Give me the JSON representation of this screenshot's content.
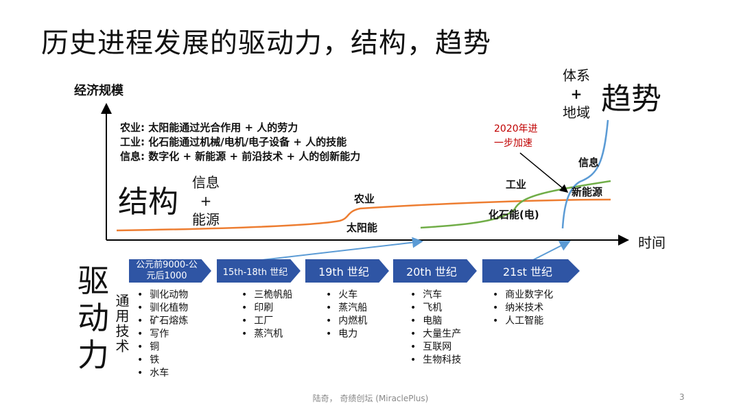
{
  "title": "历史进程发展的驱动力，结构，趋势",
  "axes": {
    "y_label": "经济规模",
    "x_label": "时间"
  },
  "descriptions": [
    "农业: 太阳能通过光合作用 + 人的劳力",
    "工业: 化石能通过机械/电机/电子设备 + 人的技能",
    "信息: 数字化 + 新能源 + 前沿技术 + 人的创新能力"
  ],
  "structure": {
    "label": "结构",
    "sub": [
      "信息",
      "+",
      "能源"
    ]
  },
  "trend": {
    "label": "趋势",
    "sub": [
      "体系",
      "+",
      "地域"
    ]
  },
  "curves": {
    "agriculture": "农业",
    "solar": "太阳能",
    "industry": "工业",
    "fossil": "化石能(电)",
    "info": "信息",
    "new_energy": "新能源",
    "annotation": [
      "2020年进",
      "一步加速"
    ]
  },
  "colors": {
    "agriculture": "#ed7d31",
    "industry": "#70ad47",
    "info": "#5b9bd5",
    "chevron": "#2f55a4",
    "annotation": "#c00000"
  },
  "drivers": {
    "label": "驱动力",
    "sub": "通用技术"
  },
  "eras": [
    {
      "label": "公元前9000-公元后1000",
      "items": [
        "驯化动物",
        "驯化植物",
        "矿石熔炼",
        "写作",
        "铜",
        "铁",
        "水车"
      ]
    },
    {
      "label": "15th-18th 世纪",
      "items": [
        "三桅帆船",
        "印刷",
        "工厂",
        "蒸汽机"
      ]
    },
    {
      "label": "19th 世纪",
      "items": [
        "火车",
        "蒸汽船",
        "内燃机",
        "电力"
      ]
    },
    {
      "label": "20th 世纪",
      "items": [
        "汽车",
        "飞机",
        "电脑",
        "大量生产",
        "互联网",
        "生物科技"
      ]
    },
    {
      "label": "21st 世纪",
      "items": [
        "商业数字化",
        "纳米技术",
        "人工智能"
      ]
    }
  ],
  "footer": {
    "credit": "陆奇， 奇绩创坛 (MiraclePlus)",
    "page": "3"
  }
}
